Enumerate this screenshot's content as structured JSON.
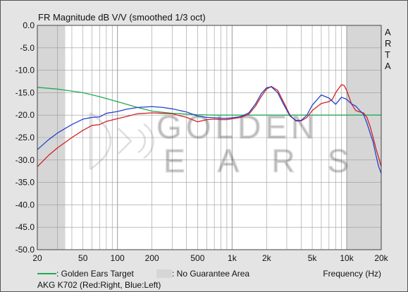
{
  "chart_data": {
    "type": "line",
    "title": "FR Magnitude dB V/V (smoothed 1/3 oct)",
    "side_label": [
      "A",
      "R",
      "T",
      "A"
    ],
    "xlabel": "Frequency (Hz)",
    "xscale": "log",
    "xlim": [
      20,
      20000
    ],
    "ylim": [
      -50,
      0
    ],
    "x_ticks": [
      {
        "v": 20,
        "label": "20"
      },
      {
        "v": 50,
        "label": "50"
      },
      {
        "v": 100,
        "label": "100"
      },
      {
        "v": 200,
        "label": "200"
      },
      {
        "v": 500,
        "label": "500"
      },
      {
        "v": 1000,
        "label": "1k"
      },
      {
        "v": 2000,
        "label": "2k"
      },
      {
        "v": 5000,
        "label": "5k"
      },
      {
        "v": 10000,
        "label": "10k"
      },
      {
        "v": 20000,
        "label": "20k"
      }
    ],
    "y_ticks": [
      {
        "v": 0,
        "label": "0.0"
      },
      {
        "v": -5,
        "label": "-5.0"
      },
      {
        "v": -10,
        "label": "-10.0"
      },
      {
        "v": -15,
        "label": "-15.0"
      },
      {
        "v": -20,
        "label": "-20.0"
      },
      {
        "v": -25,
        "label": "-25.0"
      },
      {
        "v": -30,
        "label": "-30.0"
      },
      {
        "v": -35,
        "label": "-35.0"
      },
      {
        "v": -40,
        "label": "-40.0"
      },
      {
        "v": -45,
        "label": "-45.0"
      },
      {
        "v": -50,
        "label": "-50.0"
      }
    ],
    "grid": true,
    "shaded_regions": [
      {
        "from": 20,
        "to": 35
      },
      {
        "from": 10000,
        "to": 20000
      }
    ],
    "watermark": {
      "line1": "GOLDEN",
      "line2": "EARS"
    },
    "series": [
      {
        "name": "Golden Ears Target",
        "color": "#22aa55",
        "points": [
          [
            20,
            -13.8
          ],
          [
            30,
            -14.2
          ],
          [
            50,
            -15.0
          ],
          [
            70,
            -15.9
          ],
          [
            100,
            -17.0
          ],
          [
            150,
            -18.3
          ],
          [
            200,
            -19.1
          ],
          [
            300,
            -19.6
          ],
          [
            500,
            -19.9
          ],
          [
            700,
            -20.0
          ],
          [
            1000,
            -20.0
          ],
          [
            2000,
            -20.0
          ],
          [
            5000,
            -20.0
          ],
          [
            10000,
            -20.0
          ],
          [
            20000,
            -20.0
          ]
        ]
      },
      {
        "name": "Right",
        "color": "#d42020",
        "points": [
          [
            20,
            -31.5
          ],
          [
            25,
            -29.0
          ],
          [
            30,
            -27.3
          ],
          [
            40,
            -25.0
          ],
          [
            50,
            -23.4
          ],
          [
            60,
            -22.3
          ],
          [
            70,
            -22.1
          ],
          [
            80,
            -21.4
          ],
          [
            100,
            -20.8
          ],
          [
            120,
            -20.3
          ],
          [
            150,
            -19.7
          ],
          [
            200,
            -19.5
          ],
          [
            250,
            -19.6
          ],
          [
            300,
            -19.7
          ],
          [
            400,
            -20.5
          ],
          [
            500,
            -21.5
          ],
          [
            600,
            -21.0
          ],
          [
            700,
            -20.9
          ],
          [
            800,
            -21.0
          ],
          [
            900,
            -21.0
          ],
          [
            1000,
            -20.8
          ],
          [
            1200,
            -20.5
          ],
          [
            1400,
            -19.8
          ],
          [
            1600,
            -18.0
          ],
          [
            1800,
            -15.8
          ],
          [
            2000,
            -14.2
          ],
          [
            2200,
            -13.6
          ],
          [
            2500,
            -14.5
          ],
          [
            2800,
            -17.0
          ],
          [
            3200,
            -20.0
          ],
          [
            3600,
            -21.3
          ],
          [
            4000,
            -21.3
          ],
          [
            4500,
            -20.5
          ],
          [
            5000,
            -19.0
          ],
          [
            6000,
            -17.4
          ],
          [
            7000,
            -17.0
          ],
          [
            7500,
            -16.5
          ],
          [
            8000,
            -15.0
          ],
          [
            9000,
            -13.2
          ],
          [
            9500,
            -13.4
          ],
          [
            10000,
            -14.5
          ],
          [
            11000,
            -17.5
          ],
          [
            12000,
            -19.0
          ],
          [
            13000,
            -19.3
          ],
          [
            14000,
            -19.5
          ],
          [
            15000,
            -20.5
          ],
          [
            16000,
            -22.5
          ],
          [
            17000,
            -25.0
          ],
          [
            18000,
            -27.5
          ],
          [
            19000,
            -29.5
          ],
          [
            20000,
            -31.5
          ]
        ]
      },
      {
        "name": "Left",
        "color": "#2244cc",
        "points": [
          [
            20,
            -27.7
          ],
          [
            25,
            -25.5
          ],
          [
            30,
            -24.0
          ],
          [
            40,
            -22.1
          ],
          [
            50,
            -20.9
          ],
          [
            60,
            -20.5
          ],
          [
            70,
            -20.4
          ],
          [
            80,
            -19.6
          ],
          [
            100,
            -19.2
          ],
          [
            120,
            -18.7
          ],
          [
            150,
            -18.3
          ],
          [
            200,
            -18.1
          ],
          [
            250,
            -18.3
          ],
          [
            300,
            -18.6
          ],
          [
            400,
            -19.3
          ],
          [
            500,
            -20.2
          ],
          [
            600,
            -20.5
          ],
          [
            700,
            -20.6
          ],
          [
            800,
            -20.7
          ],
          [
            900,
            -20.7
          ],
          [
            1000,
            -20.6
          ],
          [
            1200,
            -20.3
          ],
          [
            1400,
            -19.5
          ],
          [
            1600,
            -17.5
          ],
          [
            1800,
            -15.2
          ],
          [
            2000,
            -13.9
          ],
          [
            2200,
            -13.7
          ],
          [
            2500,
            -15.0
          ],
          [
            2800,
            -17.5
          ],
          [
            3200,
            -20.2
          ],
          [
            3600,
            -21.2
          ],
          [
            4000,
            -21.2
          ],
          [
            4500,
            -20.0
          ],
          [
            5000,
            -17.8
          ],
          [
            6000,
            -15.5
          ],
          [
            7000,
            -16.2
          ],
          [
            8000,
            -17.6
          ],
          [
            9000,
            -16.0
          ],
          [
            10000,
            -16.5
          ],
          [
            11000,
            -17.5
          ],
          [
            12000,
            -18.0
          ],
          [
            13000,
            -19.0
          ],
          [
            14000,
            -19.8
          ],
          [
            15000,
            -21.8
          ],
          [
            16000,
            -24.0
          ],
          [
            17000,
            -26.0
          ],
          [
            18000,
            -29.0
          ],
          [
            19000,
            -31.5
          ],
          [
            20000,
            -33.0
          ]
        ]
      }
    ],
    "legend": {
      "target_label": ": Golden Ears Target",
      "area_label": ": No Guarantee Area",
      "area_color": "#d6d6d6"
    },
    "caption": "AKG K702 (Red:Right, Blue:Left)"
  }
}
